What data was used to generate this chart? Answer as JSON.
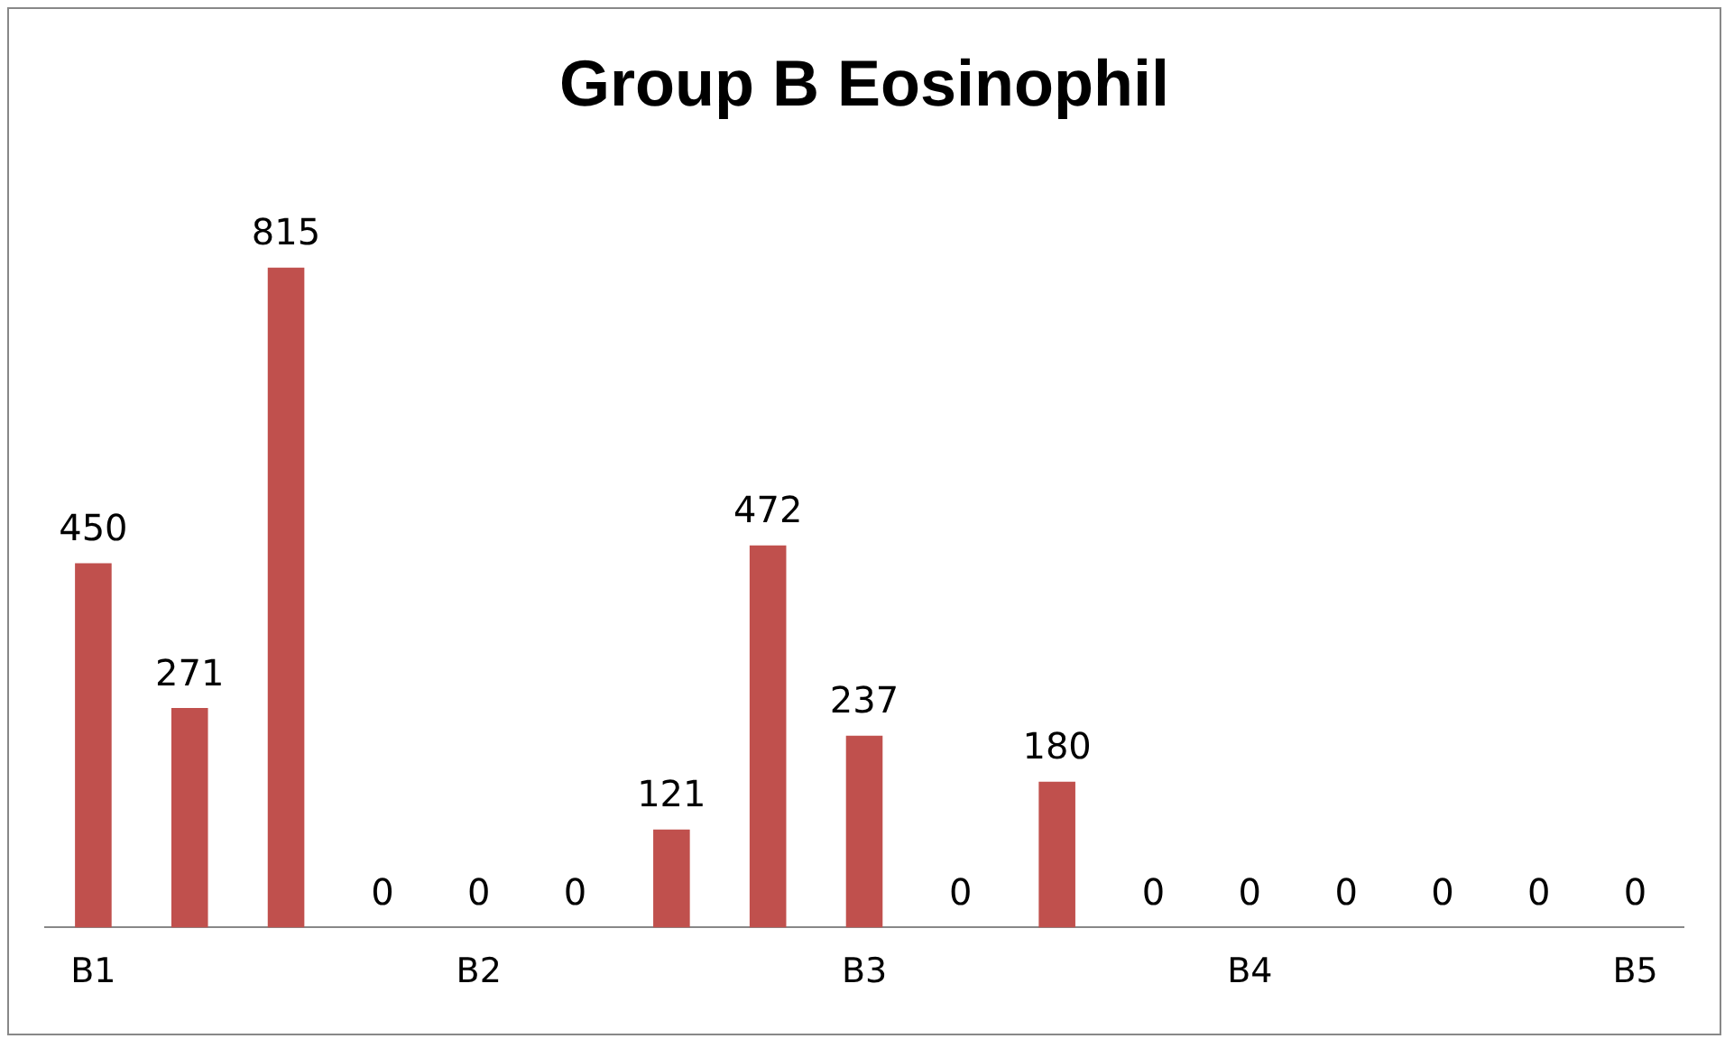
{
  "chart_data": {
    "type": "bar",
    "title": "Group B Eosinophil",
    "categories": [
      "B1",
      null,
      null,
      null,
      "B2",
      null,
      null,
      null,
      "B3",
      null,
      null,
      null,
      "B4",
      null,
      null,
      null,
      "B5"
    ],
    "values": [
      450,
      271,
      815,
      0,
      0,
      0,
      121,
      472,
      237,
      0,
      180,
      0,
      0,
      0,
      0,
      0,
      0
    ],
    "color": "#c0504d",
    "tick_labels": "x",
    "data_labels": true,
    "grid": false,
    "legend": false
  }
}
